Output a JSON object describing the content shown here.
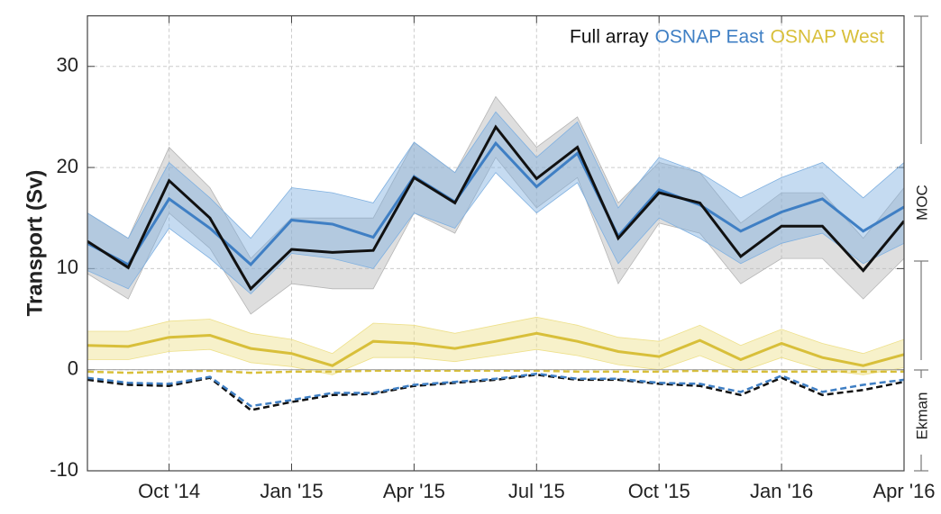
{
  "chart_data": {
    "type": "line",
    "y_label": "Transport (Sv)",
    "x": [
      "2014-08",
      "2014-09",
      "2014-10",
      "2014-11",
      "2014-12",
      "2015-01",
      "2015-02",
      "2015-03",
      "2015-04",
      "2015-05",
      "2015-06",
      "2015-07",
      "2015-08",
      "2015-09",
      "2015-10",
      "2015-11",
      "2015-12",
      "2016-01",
      "2016-02",
      "2016-03",
      "2016-04"
    ],
    "xlim": [
      "2014-08",
      "2016-04"
    ],
    "xticks": [
      {
        "value": "2014-10",
        "label": "Oct '14"
      },
      {
        "value": "2015-01",
        "label": "Jan '15"
      },
      {
        "value": "2015-04",
        "label": "Apr '15"
      },
      {
        "value": "2015-07",
        "label": "Jul '15"
      },
      {
        "value": "2015-10",
        "label": "Oct '15"
      },
      {
        "value": "2016-01",
        "label": "Jan '16"
      },
      {
        "value": "2016-04",
        "label": "Apr '16"
      }
    ],
    "ylim": [
      -10,
      35
    ],
    "yticks": [
      -10,
      0,
      10,
      20,
      30
    ],
    "grid": true,
    "legend": "upper right",
    "series": [
      {
        "name": "Full array",
        "color": "#111111",
        "band_color": "#b5b5b5",
        "values": [
          12.7,
          10.1,
          18.7,
          15.0,
          8.0,
          11.9,
          11.6,
          11.8,
          19.0,
          16.5,
          24.0,
          18.9,
          22.0,
          13.0,
          17.5,
          16.5,
          11.2,
          14.2,
          14.2,
          9.8,
          14.7
        ],
        "lower": [
          9.5,
          7.0,
          15.5,
          12.0,
          5.5,
          8.5,
          8.0,
          8.0,
          15.5,
          13.5,
          21.0,
          16.0,
          19.0,
          8.5,
          14.5,
          13.5,
          8.5,
          11.0,
          11.0,
          7.0,
          11.0
        ],
        "upper": [
          15.5,
          13.0,
          22.0,
          18.0,
          11.0,
          15.0,
          15.0,
          15.0,
          22.5,
          19.5,
          27.0,
          22.0,
          25.0,
          16.5,
          20.5,
          19.5,
          14.5,
          17.5,
          17.5,
          13.0,
          18.0
        ]
      },
      {
        "name": "OSNAP East",
        "color": "#3f7fc4",
        "band_color": "#7fb0e0",
        "values": [
          12.5,
          10.4,
          16.9,
          14.0,
          10.4,
          14.8,
          14.4,
          13.1,
          19.1,
          16.6,
          22.4,
          18.1,
          21.4,
          13.2,
          17.8,
          16.3,
          13.7,
          15.6,
          16.9,
          13.7,
          16.1
        ],
        "lower": [
          9.8,
          8.0,
          14.0,
          11.0,
          7.5,
          11.5,
          11.0,
          10.0,
          15.5,
          14.0,
          19.5,
          15.5,
          18.5,
          10.5,
          15.0,
          13.0,
          10.5,
          12.5,
          13.5,
          10.5,
          12.5
        ],
        "upper": [
          15.5,
          13.0,
          20.5,
          17.0,
          13.0,
          18.0,
          17.5,
          16.5,
          22.5,
          19.5,
          25.5,
          21.0,
          24.5,
          16.0,
          21.0,
          19.5,
          17.0,
          19.0,
          20.5,
          17.0,
          20.5
        ]
      },
      {
        "name": "OSNAP West",
        "color": "#d8bf3a",
        "band_color": "#eee08a",
        "values": [
          2.4,
          2.3,
          3.2,
          3.4,
          2.1,
          1.6,
          0.4,
          2.8,
          2.6,
          2.1,
          2.8,
          3.6,
          2.8,
          1.8,
          1.3,
          2.9,
          1.0,
          2.6,
          1.2,
          0.4,
          1.5
        ],
        "lower": [
          1.0,
          1.0,
          1.8,
          2.0,
          0.7,
          0.3,
          -0.5,
          1.2,
          1.2,
          0.8,
          1.4,
          2.0,
          1.4,
          0.5,
          0.0,
          1.4,
          -0.2,
          1.2,
          0.0,
          -0.5,
          0.2
        ],
        "upper": [
          3.8,
          3.8,
          4.8,
          5.0,
          3.6,
          3.0,
          1.6,
          4.6,
          4.4,
          3.6,
          4.4,
          5.2,
          4.4,
          3.2,
          2.8,
          4.4,
          2.4,
          4.0,
          2.6,
          1.6,
          3.0
        ]
      }
    ],
    "ekman": [
      {
        "color": "#111111",
        "values": [
          -1.0,
          -1.5,
          -1.6,
          -0.8,
          -4.0,
          -3.2,
          -2.5,
          -2.4,
          -1.6,
          -1.3,
          -1.0,
          -0.5,
          -1.0,
          -1.0,
          -1.4,
          -1.6,
          -2.5,
          -0.8,
          -2.5,
          -2.0,
          -1.2
        ]
      },
      {
        "color": "#3f7fc4",
        "values": [
          -0.8,
          -1.3,
          -1.4,
          -0.7,
          -3.6,
          -3.0,
          -2.3,
          -2.3,
          -1.5,
          -1.2,
          -0.9,
          -0.4,
          -0.9,
          -0.9,
          -1.3,
          -1.4,
          -2.2,
          -0.6,
          -2.2,
          -1.5,
          -1.0
        ]
      },
      {
        "color": "#d8bf3a",
        "values": [
          -0.2,
          -0.3,
          -0.2,
          -0.1,
          -0.3,
          -0.2,
          -0.2,
          -0.1,
          -0.1,
          -0.1,
          -0.1,
          -0.1,
          -0.2,
          -0.2,
          -0.2,
          -0.1,
          -0.2,
          -0.2,
          -0.2,
          -0.2,
          -0.2
        ]
      }
    ],
    "annotations": [
      "MOC",
      "Ekman"
    ]
  }
}
